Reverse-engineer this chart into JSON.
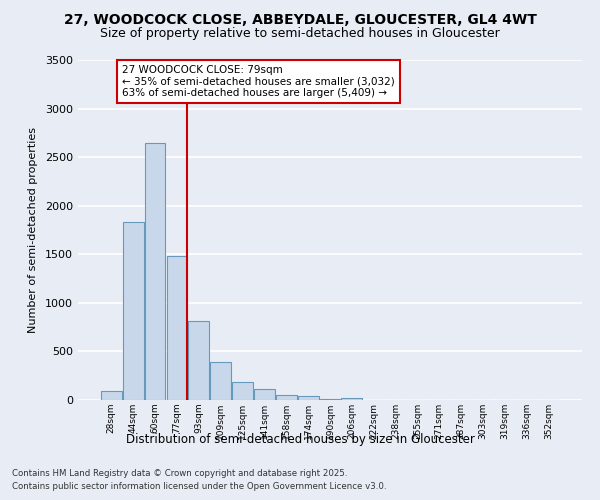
{
  "title_line1": "27, WOODCOCK CLOSE, ABBEYDALE, GLOUCESTER, GL4 4WT",
  "title_line2": "Size of property relative to semi-detached houses in Gloucester",
  "xlabel": "Distribution of semi-detached houses by size in Gloucester",
  "ylabel": "Number of semi-detached properties",
  "bin_labels": [
    "28sqm",
    "44sqm",
    "60sqm",
    "77sqm",
    "93sqm",
    "109sqm",
    "125sqm",
    "141sqm",
    "158sqm",
    "174sqm",
    "190sqm",
    "206sqm",
    "222sqm",
    "238sqm",
    "255sqm",
    "271sqm",
    "287sqm",
    "303sqm",
    "319sqm",
    "336sqm",
    "352sqm"
  ],
  "bar_heights": [
    95,
    1830,
    2650,
    1480,
    810,
    390,
    185,
    115,
    55,
    40,
    10,
    25,
    5,
    0,
    0,
    0,
    0,
    0,
    0,
    0,
    0
  ],
  "bar_color": "#c8d8ea",
  "bar_edge_color": "#6699bb",
  "annotation_text": "27 WOODCOCK CLOSE: 79sqm\n← 35% of semi-detached houses are smaller (3,032)\n63% of semi-detached houses are larger (5,409) →",
  "annotation_box_facecolor": "#ffffff",
  "annotation_box_edgecolor": "#cc0000",
  "ylim_max": 3500,
  "yticks": [
    0,
    500,
    1000,
    1500,
    2000,
    2500,
    3000,
    3500
  ],
  "bg_color": "#e8edf5",
  "vline_color": "#cc0000",
  "grid_color": "#ffffff",
  "footer_line1": "Contains HM Land Registry data © Crown copyright and database right 2025.",
  "footer_line2": "Contains public sector information licensed under the Open Government Licence v3.0."
}
